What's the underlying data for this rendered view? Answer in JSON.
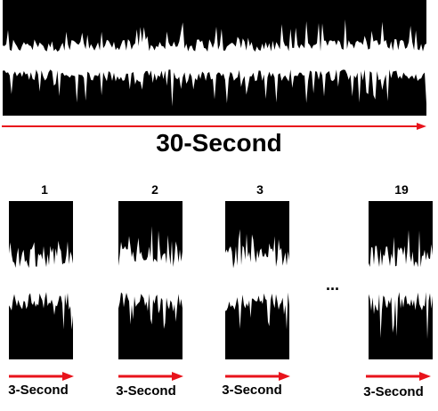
{
  "main": {
    "title_label": "30-Second",
    "ellipsis": "..."
  },
  "segments": [
    {
      "number": "1",
      "label": "3-Second"
    },
    {
      "number": "2",
      "label": "3-Second"
    },
    {
      "number": "3",
      "label": "3-Second"
    },
    {
      "number": "19",
      "label": "3-Second"
    }
  ],
  "colors": {
    "signal_background": "#000000",
    "signal_wave": "#ffffff",
    "arrow": "#e8131b"
  }
}
